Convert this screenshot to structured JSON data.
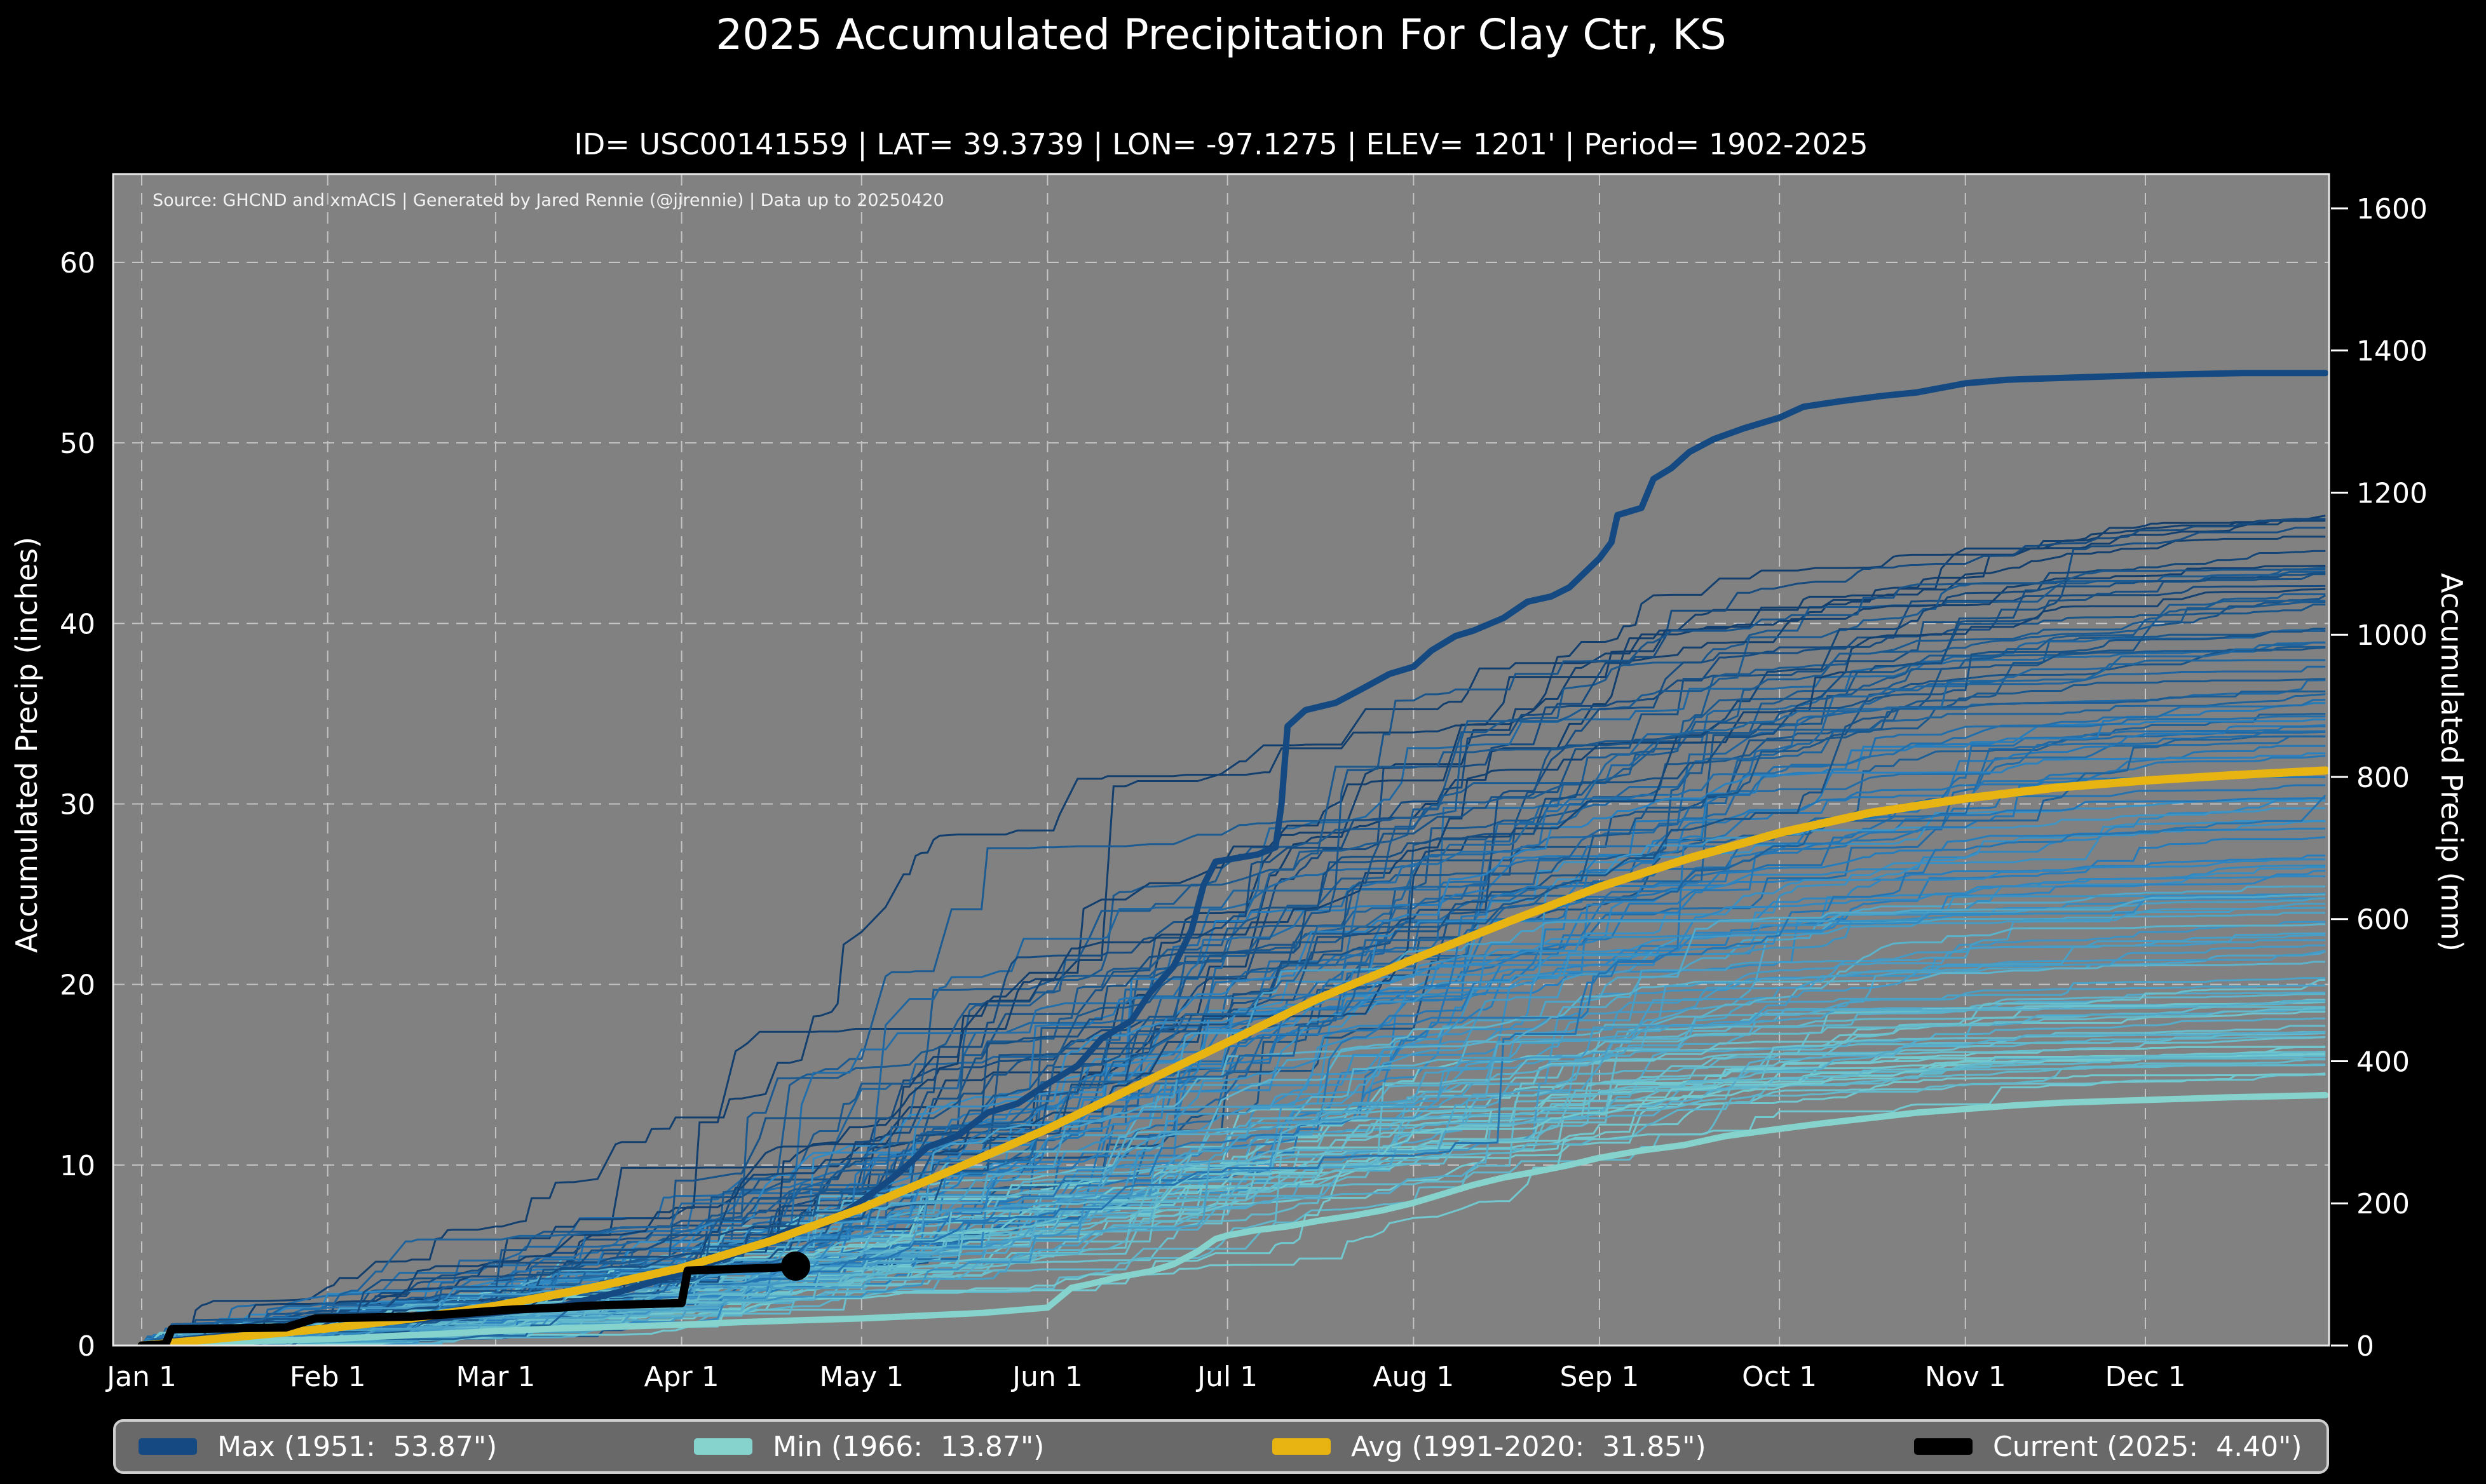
{
  "title": "2025 Accumulated Precipitation For Clay Ctr, KS",
  "subtitle": "ID= USC00141559 | LAT= 39.3739 | LON= -97.1275 | ELEV= 1201' | Period= 1902-2025",
  "source_note": "Source: GHCND and xmACIS | Generated by Jared Rennie (@jjrennie) | Data up to 20250420",
  "colors": {
    "figure_background": "#000000",
    "plot_background": "#818181",
    "gridline": "#d0d0d0",
    "plot_border": "#e8e8e8",
    "legend_background": "#696969",
    "legend_border": "#cfcfcf",
    "text": "#ffffff"
  },
  "chart_data": {
    "type": "line",
    "title": "2025 Accumulated Precipitation For Clay Ctr, KS",
    "x_axis": {
      "tick_labels": [
        "Jan 1",
        "Feb 1",
        "Mar 1",
        "Apr 1",
        "May 1",
        "Jun 1",
        "Jul 1",
        "Aug 1",
        "Sep 1",
        "Oct 1",
        "Nov 1",
        "Dec 1"
      ],
      "tick_days": [
        0,
        31,
        59,
        90,
        120,
        151,
        181,
        212,
        243,
        273,
        304,
        334
      ],
      "range_days": [
        0,
        364
      ],
      "grid": "dashed"
    },
    "y_left": {
      "label": "Accumulated Precip (inches)",
      "ticks": [
        0,
        10,
        20,
        30,
        40,
        50,
        60
      ],
      "range": [
        0,
        64.9
      ],
      "grid": "dashed"
    },
    "y_right": {
      "label": "Accumulated Precip (mm)",
      "ticks": [
        0,
        200,
        400,
        600,
        800,
        1000,
        1200,
        1400,
        1600
      ],
      "mm_per_inch": 25.4
    },
    "legend_position": "bottom",
    "series": [
      {
        "name": "Max",
        "legend": "Max (1951:  53.87\")",
        "color": "#144a81",
        "width": 10,
        "end_dot": false,
        "points": [
          [
            0,
            0
          ],
          [
            6,
            0.3
          ],
          [
            15,
            0.6
          ],
          [
            31,
            1.0
          ],
          [
            45,
            1.4
          ],
          [
            59,
            1.8
          ],
          [
            70,
            2.2
          ],
          [
            80,
            3.0
          ],
          [
            90,
            4.0
          ],
          [
            95,
            4.6
          ],
          [
            100,
            5.2
          ],
          [
            108,
            6.4
          ],
          [
            114,
            6.7
          ],
          [
            120,
            8.0
          ],
          [
            126,
            9.5
          ],
          [
            131,
            11.0
          ],
          [
            136,
            11.6
          ],
          [
            141,
            12.9
          ],
          [
            146,
            13.4
          ],
          [
            151,
            14.5
          ],
          [
            156,
            15.5
          ],
          [
            160,
            17.0
          ],
          [
            165,
            18.0
          ],
          [
            168,
            19.5
          ],
          [
            172,
            21.0
          ],
          [
            175,
            23.0
          ],
          [
            177,
            25.5
          ],
          [
            179,
            26.8
          ],
          [
            186,
            27.2
          ],
          [
            189,
            27.6
          ],
          [
            190,
            30.0
          ],
          [
            191,
            34.3
          ],
          [
            194,
            35.2
          ],
          [
            199,
            35.6
          ],
          [
            203,
            36.3
          ],
          [
            208,
            37.2
          ],
          [
            212,
            37.6
          ],
          [
            215,
            38.5
          ],
          [
            219,
            39.3
          ],
          [
            222,
            39.6
          ],
          [
            227,
            40.3
          ],
          [
            231,
            41.2
          ],
          [
            235,
            41.5
          ],
          [
            238,
            42.0
          ],
          [
            243,
            43.6
          ],
          [
            245,
            44.5
          ],
          [
            246,
            46.0
          ],
          [
            250,
            46.4
          ],
          [
            252,
            48.0
          ],
          [
            255,
            48.6
          ],
          [
            258,
            49.5
          ],
          [
            262,
            50.2
          ],
          [
            267,
            50.8
          ],
          [
            273,
            51.4
          ],
          [
            277,
            52.0
          ],
          [
            283,
            52.3
          ],
          [
            290,
            52.6
          ],
          [
            296,
            52.8
          ],
          [
            304,
            53.3
          ],
          [
            311,
            53.5
          ],
          [
            320,
            53.6
          ],
          [
            334,
            53.75
          ],
          [
            350,
            53.87
          ],
          [
            364,
            53.87
          ]
        ]
      },
      {
        "name": "Min",
        "legend": "Min (1966:  13.87\")",
        "color": "#85d3cc",
        "width": 10,
        "end_dot": false,
        "points": [
          [
            0,
            0
          ],
          [
            10,
            0.1
          ],
          [
            20,
            0.25
          ],
          [
            31,
            0.35
          ],
          [
            40,
            0.5
          ],
          [
            50,
            0.65
          ],
          [
            59,
            0.8
          ],
          [
            70,
            0.95
          ],
          [
            80,
            1.05
          ],
          [
            90,
            1.15
          ],
          [
            100,
            1.3
          ],
          [
            110,
            1.4
          ],
          [
            120,
            1.5
          ],
          [
            130,
            1.65
          ],
          [
            140,
            1.8
          ],
          [
            151,
            2.1
          ],
          [
            155,
            3.2
          ],
          [
            158,
            3.4
          ],
          [
            163,
            3.8
          ],
          [
            168,
            4.1
          ],
          [
            172,
            4.5
          ],
          [
            176,
            5.2
          ],
          [
            179,
            5.9
          ],
          [
            181,
            6.1
          ],
          [
            186,
            6.4
          ],
          [
            191,
            6.6
          ],
          [
            196,
            6.9
          ],
          [
            202,
            7.2
          ],
          [
            207,
            7.5
          ],
          [
            212,
            7.9
          ],
          [
            217,
            8.4
          ],
          [
            222,
            8.9
          ],
          [
            227,
            9.3
          ],
          [
            232,
            9.6
          ],
          [
            238,
            10.0
          ],
          [
            243,
            10.4
          ],
          [
            250,
            10.8
          ],
          [
            257,
            11.1
          ],
          [
            264,
            11.6
          ],
          [
            273,
            12.0
          ],
          [
            280,
            12.3
          ],
          [
            288,
            12.6
          ],
          [
            296,
            12.9
          ],
          [
            304,
            13.1
          ],
          [
            312,
            13.3
          ],
          [
            320,
            13.45
          ],
          [
            334,
            13.6
          ],
          [
            348,
            13.75
          ],
          [
            364,
            13.87
          ]
        ]
      },
      {
        "name": "Avg",
        "legend": "Avg (1991-2020:  31.85\")",
        "color": "#e7b412",
        "width": 13,
        "end_dot": false,
        "points": [
          [
            0,
            0
          ],
          [
            15,
            0.45
          ],
          [
            31,
            0.95
          ],
          [
            45,
            1.5
          ],
          [
            59,
            2.2
          ],
          [
            75,
            3.2
          ],
          [
            90,
            4.3
          ],
          [
            105,
            5.8
          ],
          [
            120,
            7.6
          ],
          [
            135,
            9.7
          ],
          [
            151,
            12.0
          ],
          [
            166,
            14.4
          ],
          [
            181,
            16.8
          ],
          [
            196,
            19.2
          ],
          [
            212,
            21.4
          ],
          [
            228,
            23.5
          ],
          [
            243,
            25.4
          ],
          [
            258,
            27.0
          ],
          [
            273,
            28.4
          ],
          [
            288,
            29.5
          ],
          [
            304,
            30.3
          ],
          [
            319,
            30.9
          ],
          [
            334,
            31.3
          ],
          [
            349,
            31.6
          ],
          [
            364,
            31.85
          ]
        ]
      },
      {
        "name": "Current",
        "legend": "Current (2025:  4.40\")",
        "color": "#000000",
        "width": 13,
        "end_dot": true,
        "points": [
          [
            0,
            0
          ],
          [
            3,
            0.05
          ],
          [
            4,
            0.1
          ],
          [
            5,
            0.9
          ],
          [
            24,
            1.0
          ],
          [
            29,
            1.5
          ],
          [
            45,
            1.6
          ],
          [
            52,
            1.75
          ],
          [
            58,
            1.9
          ],
          [
            62,
            2.0
          ],
          [
            70,
            2.1
          ],
          [
            74,
            2.2
          ],
          [
            84,
            2.3
          ],
          [
            90,
            2.35
          ],
          [
            91,
            4.15
          ],
          [
            95,
            4.2
          ],
          [
            100,
            4.25
          ],
          [
            105,
            4.3
          ],
          [
            109,
            4.4
          ]
        ]
      }
    ],
    "ensemble": {
      "description": "Background step lines, one per year 1902-2025, colored light cyan (low totals) to dark navy (high totals)",
      "count": 118,
      "seed": 20250420,
      "final_range_inches": [
        15,
        46
      ],
      "color_low": "#72ccd4",
      "color_mid": "#2380c4",
      "color_high": "#0d3c6e",
      "width": 3
    }
  }
}
